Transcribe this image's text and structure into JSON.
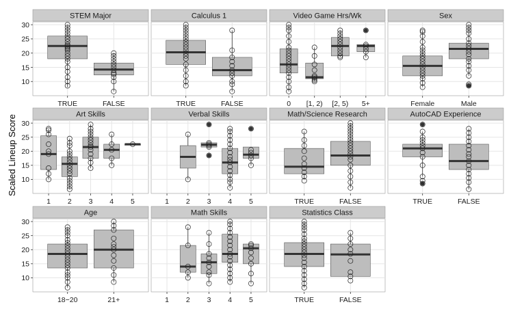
{
  "chart_data": {
    "type": "boxplot",
    "ylabel": "Scaled Lineup Score",
    "ylim": [
      5,
      31
    ],
    "yticks": [
      10,
      15,
      20,
      25,
      30
    ],
    "grid": true,
    "panels": [
      {
        "title": "STEM Major",
        "categories": [
          "TRUE",
          "FALSE"
        ],
        "boxes": [
          {
            "min": 8,
            "q1": 18,
            "median": 22.5,
            "q3": 26,
            "max": 30,
            "points": [
              8.5,
              10,
              11.5,
              13.5,
              15,
              17,
              18,
              19,
              20,
              21,
              21.5,
              22,
              22.5,
              23,
              24,
              25,
              26,
              27,
              28,
              29,
              30
            ]
          },
          {
            "min": 6.5,
            "q1": 12.3,
            "median": 14.2,
            "q3": 16.5,
            "max": 20,
            "points": [
              6.5,
              10,
              11.5,
              12.5,
              13,
              14,
              15,
              16,
              17,
              18,
              19,
              20
            ]
          }
        ]
      },
      {
        "title": "Calculus 1",
        "categories": [
          "TRUE",
          "FALSE"
        ],
        "boxes": [
          {
            "min": 8.5,
            "q1": 16,
            "median": 20.3,
            "q3": 24.5,
            "max": 30,
            "points": [
              8.5,
              10,
              12,
              14,
              16,
              18,
              19,
              20,
              21,
              22,
              23,
              24,
              25,
              26,
              27,
              28,
              29,
              30
            ]
          },
          {
            "min": 6.5,
            "q1": 12,
            "median": 14,
            "q3": 18.5,
            "max": 28,
            "points": [
              6.5,
              9,
              10,
              12,
              13,
              14,
              15.5,
              17,
              18.5,
              21,
              28
            ]
          }
        ]
      },
      {
        "title": "Video Game Hrs/Wk",
        "categories": [
          "0",
          "[1, 2)",
          "[2, 5)",
          "5+"
        ],
        "boxes": [
          {
            "min": 6.5,
            "q1": 13,
            "median": 16,
            "q3": 21.5,
            "max": 30,
            "points": [
              6.5,
              8,
              10,
              11.5,
              13,
              14,
              15,
              16,
              17,
              18,
              19,
              20,
              21,
              22,
              24,
              26,
              28,
              29,
              30
            ]
          },
          {
            "min": 10,
            "q1": 11,
            "median": 11.5,
            "q3": 16.5,
            "max": 22,
            "points": [
              10,
              10.5,
              11,
              11.5,
              12,
              14,
              16,
              19,
              22
            ]
          },
          {
            "min": 18.5,
            "q1": 19,
            "median": 22.5,
            "q3": 25.5,
            "max": 28,
            "points": [
              18.5,
              19,
              20,
              21,
              22,
              23,
              24,
              25,
              26,
              27,
              28
            ]
          },
          {
            "min": 18.5,
            "q1": 20.5,
            "median": 22.5,
            "q3": 23,
            "max": 23,
            "points": [
              18.5,
              20.5,
              21.5,
              22.5,
              23,
              28
            ],
            "outliers": [
              28
            ]
          }
        ]
      },
      {
        "title": "Sex",
        "categories": [
          "Female",
          "Male"
        ],
        "boxes": [
          {
            "min": 8,
            "q1": 12,
            "median": 15.5,
            "q3": 19,
            "max": 28,
            "points": [
              8,
              9.5,
              11,
              12,
              13,
              14,
              15,
              16,
              17,
              18,
              19,
              20,
              21,
              22,
              24,
              26,
              27.5,
              28
            ]
          },
          {
            "min": 12,
            "q1": 18,
            "median": 21.5,
            "q3": 23.5,
            "max": 30,
            "points": [
              8.5,
              9,
              12,
              14,
              15.5,
              17,
              18,
              19.5,
              20.5,
              21.5,
              22.5,
              23.5,
              25,
              27,
              28,
              29,
              30
            ],
            "outliers": [
              8.5
            ]
          }
        ]
      },
      {
        "title": "Art Skills",
        "categories": [
          "1",
          "2",
          "3",
          "4",
          "5"
        ],
        "boxes": [
          {
            "min": 10,
            "q1": 13.5,
            "median": 19,
            "q3": 25.5,
            "max": 28,
            "points": [
              10,
              12,
              14,
              19,
              20,
              22.5,
              26,
              27.5,
              28
            ]
          },
          {
            "min": 6.5,
            "q1": 11,
            "median": 15.5,
            "q3": 18,
            "max": 24.5,
            "points": [
              6.5,
              7.5,
              8.5,
              9.5,
              10.5,
              12,
              13,
              14,
              15,
              16,
              17,
              18,
              19,
              20,
              22,
              23,
              24.5
            ]
          },
          {
            "min": 14,
            "q1": 17.5,
            "median": 21.5,
            "q3": 25,
            "max": 29.5,
            "points": [
              14,
              16,
              17.5,
              19,
              20.5,
              21.5,
              22,
              23,
              24,
              25,
              26,
              27,
              28,
              29.5
            ]
          },
          {
            "min": 15,
            "q1": 17.5,
            "median": 20.5,
            "q3": 22.5,
            "max": 26,
            "points": [
              15,
              17.5,
              20.5,
              22.5,
              26
            ]
          },
          {
            "min": 22.5,
            "q1": 22.5,
            "median": 22.5,
            "q3": 22.5,
            "max": 22.5,
            "points": [
              22.5
            ]
          }
        ]
      },
      {
        "title": "Verbal Skills",
        "categories": [
          "1",
          "2",
          "3",
          "4",
          "5"
        ],
        "boxes": [
          null,
          {
            "min": 10,
            "q1": 14,
            "median": 18,
            "q3": 22,
            "max": 26,
            "points": [
              10,
              26
            ]
          },
          {
            "min": 21.5,
            "q1": 21.5,
            "median": 22.3,
            "q3": 23,
            "max": 23,
            "points": [
              18.5,
              21.5,
              22,
              22.5,
              23,
              29.5
            ],
            "outliers": [
              18.5,
              29.5
            ]
          },
          {
            "min": 7,
            "q1": 12,
            "median": 16,
            "q3": 21,
            "max": 28,
            "points": [
              7,
              9,
              10,
              11.5,
              13,
              14.5,
              16,
              17,
              18,
              19.5,
              21,
              22.5,
              24,
              25.5,
              27,
              28
            ]
          },
          {
            "min": 15,
            "q1": 17.5,
            "median": 18.8,
            "q3": 21.5,
            "max": 21.5,
            "points": [
              15,
              17.5,
              18.5,
              19.5,
              20.5,
              28
            ],
            "outliers": [
              28
            ]
          }
        ]
      },
      {
        "title": "Math/Science Research",
        "categories": [
          "TRUE",
          "FALSE"
        ],
        "boxes": [
          {
            "min": 10,
            "q1": 12,
            "median": 14.5,
            "q3": 21,
            "max": 27,
            "points": [
              9.5,
              11,
              12.5,
              14,
              15.5,
              17.5,
              20,
              22,
              24,
              27
            ]
          },
          {
            "min": 7,
            "q1": 15,
            "median": 18.5,
            "q3": 23.5,
            "max": 30,
            "points": [
              7,
              9,
              11,
              13,
              15,
              17,
              18,
              19,
              20,
              21,
              22,
              23,
              24,
              25,
              26,
              27,
              28,
              29,
              30
            ]
          }
        ]
      },
      {
        "title": "AutoCAD Experience",
        "categories": [
          "TRUE",
          "FALSE"
        ],
        "boxes": [
          {
            "min": 11,
            "q1": 18,
            "median": 21,
            "q3": 22.5,
            "max": 27,
            "points": [
              8.5,
              9.5,
              11,
              15,
              18,
              19.5,
              21,
              22,
              23,
              24,
              25,
              27,
              29.5
            ],
            "outliers": [
              8.5,
              29.5
            ]
          },
          {
            "min": 6.5,
            "q1": 13.5,
            "median": 16.5,
            "q3": 22.5,
            "max": 28,
            "points": [
              6.5,
              9,
              10.5,
              12,
              13.5,
              15,
              16.5,
              18,
              19,
              20.5,
              22,
              23.5,
              25,
              26.5,
              28
            ]
          }
        ]
      },
      {
        "title": "Age",
        "categories": [
          "18−20",
          "21+"
        ],
        "boxes": [
          {
            "min": 6.5,
            "q1": 13.5,
            "median": 18.5,
            "q3": 22,
            "max": 28,
            "points": [
              6.5,
              8.5,
              10,
              11,
              12,
              13.5,
              14.5,
              15.5,
              16.5,
              17.5,
              18.5,
              19.5,
              20.5,
              21.5,
              22.5,
              23.5,
              25,
              26,
              27,
              28
            ]
          },
          {
            "min": 8.5,
            "q1": 13.5,
            "median": 20,
            "q3": 27,
            "max": 30,
            "points": [
              8.5,
              11,
              13.5,
              16,
              18,
              20,
              21,
              22,
              24,
              27,
              28.5,
              30
            ]
          }
        ]
      },
      {
        "title": "Math Skills",
        "categories": [
          "1",
          "2",
          "3",
          "4",
          "5"
        ],
        "boxes": [
          null,
          {
            "min": 10,
            "q1": 12,
            "median": 14,
            "q3": 21.5,
            "max": 28,
            "points": [
              10,
              12,
              14,
              21.5,
              28
            ]
          },
          {
            "min": 8,
            "q1": 11.5,
            "median": 15.5,
            "q3": 18.5,
            "max": 26,
            "points": [
              8,
              11,
              12,
              14,
              15.5,
              17,
              18.5,
              22,
              26
            ]
          },
          {
            "min": 8.5,
            "q1": 15.5,
            "median": 18.5,
            "q3": 25.5,
            "max": 30,
            "points": [
              8.5,
              10,
              11.5,
              13,
              14.5,
              16,
              17.5,
              18.5,
              20,
              21.5,
              23,
              24.5,
              26,
              27.5,
              29,
              30
            ]
          },
          {
            "min": 8,
            "q1": 15,
            "median": 20.5,
            "q3": 22,
            "max": 22,
            "points": [
              8,
              11.5,
              15,
              17,
              19,
              20.5,
              21.5,
              22
            ]
          }
        ]
      },
      {
        "title": "Statistics Class",
        "categories": [
          "TRUE",
          "FALSE"
        ],
        "boxes": [
          {
            "min": 6.5,
            "q1": 14,
            "median": 18.5,
            "q3": 22.5,
            "max": 30,
            "points": [
              6.5,
              8,
              9.5,
              11,
              12.5,
              14,
              15.5,
              17,
              18,
              19,
              20,
              21,
              22,
              23,
              24,
              25.5,
              27,
              28,
              29,
              30
            ]
          },
          {
            "min": 10.5,
            "q1": 10.5,
            "median": 18.3,
            "q3": 22,
            "max": 26,
            "points": [
              9,
              10.5,
              12,
              16,
              18.5,
              20,
              22,
              24,
              26
            ]
          }
        ]
      }
    ]
  },
  "style": {
    "strip_fill": "#cccccc",
    "panel_fill": "#ffffff",
    "box_fill": "#bdbdbd",
    "grid_color": "#e5e5e5",
    "median_color": "#333333",
    "point_color": "#222222"
  }
}
